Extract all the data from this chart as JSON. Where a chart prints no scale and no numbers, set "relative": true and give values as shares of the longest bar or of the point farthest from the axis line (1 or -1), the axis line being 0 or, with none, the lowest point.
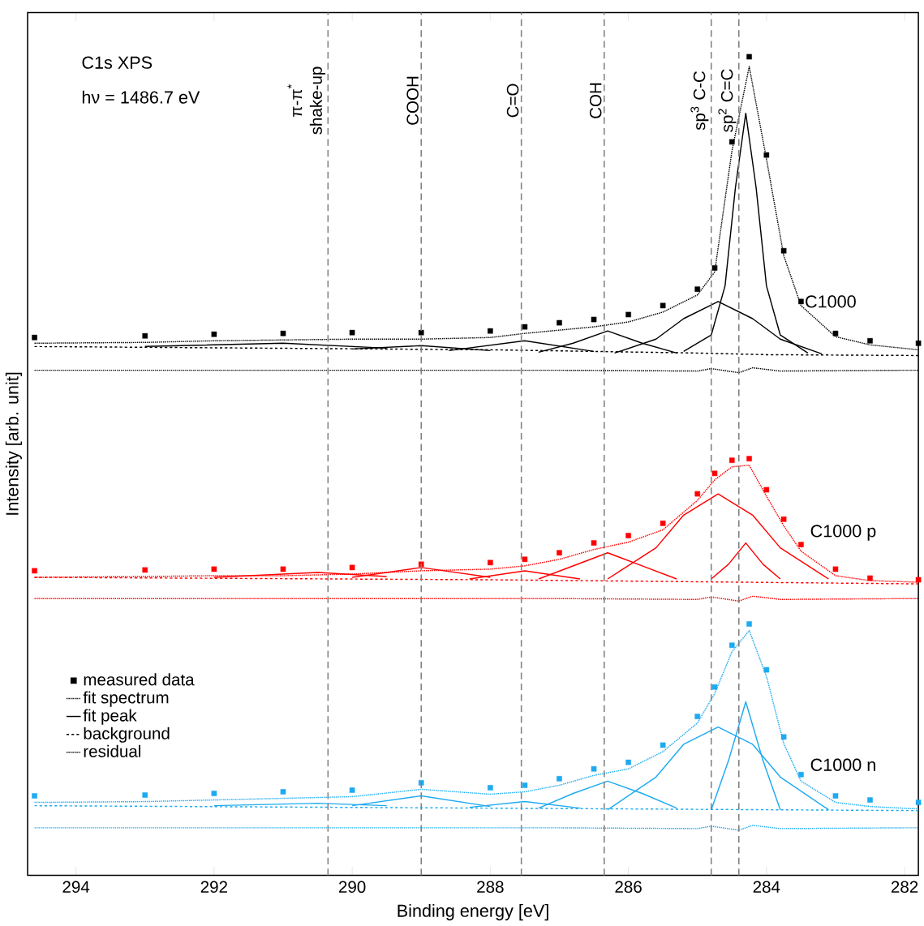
{
  "chart_data": {
    "type": "line",
    "relative": true,
    "xlabel": "Binding energy [eV]",
    "ylabel": "Intensity [arb. unit]",
    "xlim": [
      294.7,
      281.8
    ],
    "xticks": [
      294,
      292,
      290,
      288,
      286,
      284,
      282
    ],
    "legend": "bottom left",
    "x": [
      294.6,
      293,
      292,
      291,
      290,
      289,
      288,
      287.5,
      287,
      286.5,
      286,
      285.5,
      285,
      284.75,
      284.5,
      284.25,
      284,
      283.75,
      283.5,
      283,
      282.5,
      281.8
    ],
    "series": [
      {
        "name": "measured data",
        "type": "scatter",
        "marker": "square",
        "color": "#000000",
        "values": [
          0.657,
          0.659,
          0.661,
          0.662,
          0.663,
          0.663,
          0.665,
          0.67,
          0.675,
          0.679,
          0.685,
          0.696,
          0.716,
          0.742,
          0.896,
          1.0,
          0.88,
          0.763,
          0.701,
          0.662,
          0.653,
          0.65
        ]
      },
      {
        "name": "fit spectrum",
        "line_style": "dotted",
        "color": "#000000",
        "values": [
          0.65,
          0.651,
          0.653,
          0.654,
          0.655,
          0.655,
          0.657,
          0.662,
          0.666,
          0.67,
          0.676,
          0.688,
          0.709,
          0.737,
          0.885,
          0.988,
          0.875,
          0.757,
          0.696,
          0.658,
          0.648,
          0.642
        ]
      },
      {
        "name": "fit peak",
        "line_style": "solid",
        "color": "#000000",
        "x": [
          285.2,
          284.8,
          284.6,
          284.45,
          284.3,
          284.15,
          284.0,
          283.8,
          283.4
        ],
        "values": [
          0.64,
          0.66,
          0.72,
          0.84,
          0.931,
          0.84,
          0.72,
          0.66,
          0.638
        ]
      },
      {
        "name": "background",
        "line_style": "dashed",
        "color": "#000000",
        "x": [
          294.6,
          288,
          285,
          284,
          281.8
        ],
        "values": [
          0.646,
          0.642,
          0.638,
          0.636,
          0.635
        ]
      },
      {
        "name": "residual",
        "line_style": "dotted",
        "color": "#000000",
        "x": [
          294.6,
          290,
          287,
          285,
          284.8,
          284.4,
          284.2,
          283.8,
          282,
          281.8
        ],
        "values": [
          0.617,
          0.617,
          0.617,
          0.616,
          0.619,
          0.614,
          0.62,
          0.616,
          0.617,
          0.617
        ]
      },
      {
        "line_style": "solid",
        "color": "#000000",
        "x": [
          286.2,
          285.6,
          285.2,
          284.7,
          284.2,
          283.8,
          283.2
        ],
        "values": [
          0.638,
          0.655,
          0.68,
          0.701,
          0.68,
          0.655,
          0.637
        ]
      },
      {
        "line_style": "solid",
        "color": "#000000",
        "x": [
          287.3,
          286.8,
          286.3,
          285.8,
          285.3
        ],
        "values": [
          0.639,
          0.65,
          0.665,
          0.65,
          0.638
        ]
      },
      {
        "line_style": "solid",
        "color": "#000000",
        "x": [
          288.6,
          287.5,
          286.5
        ],
        "values": [
          0.641,
          0.653,
          0.64
        ]
      },
      {
        "line_style": "solid",
        "color": "#000000",
        "x": [
          290,
          289,
          288
        ],
        "values": [
          0.643,
          0.647,
          0.641
        ]
      },
      {
        "line_style": "solid",
        "color": "#000000",
        "x": [
          293,
          291,
          289.5
        ],
        "values": [
          0.646,
          0.65,
          0.644
        ]
      },
      {
        "type": "scatter",
        "marker": "square",
        "color": "#ff0000",
        "values": [
          0.372,
          0.373,
          0.374,
          0.374,
          0.376,
          0.38,
          0.382,
          0.386,
          0.394,
          0.406,
          0.415,
          0.43,
          0.466,
          0.491,
          0.507,
          0.509,
          0.471,
          0.435,
          0.404,
          0.374,
          0.363,
          0.361
        ]
      },
      {
        "line_style": "dotted",
        "color": "#ff0000",
        "values": [
          0.364,
          0.365,
          0.366,
          0.366,
          0.368,
          0.372,
          0.374,
          0.378,
          0.386,
          0.398,
          0.407,
          0.422,
          0.458,
          0.483,
          0.499,
          0.501,
          0.463,
          0.427,
          0.396,
          0.366,
          0.36,
          0.358
        ]
      },
      {
        "line_style": "dashed",
        "color": "#ff0000",
        "x": [
          294.6,
          288,
          281.8
        ],
        "values": [
          0.364,
          0.361,
          0.356
        ]
      },
      {
        "line_style": "dotted",
        "color": "#ff0000",
        "x": [
          294.6,
          290,
          287,
          285,
          284.8,
          284.4,
          284.2,
          283.8,
          282,
          281.8
        ],
        "values": [
          0.338,
          0.338,
          0.338,
          0.337,
          0.34,
          0.335,
          0.341,
          0.337,
          0.338,
          0.338
        ]
      },
      {
        "line_style": "solid",
        "color": "#ff0000",
        "x": [
          284.8,
          284.55,
          284.3,
          284.05,
          283.8
        ],
        "values": [
          0.362,
          0.38,
          0.406,
          0.38,
          0.362
        ]
      },
      {
        "line_style": "solid",
        "color": "#ff0000",
        "x": [
          286.3,
          285.6,
          285.2,
          284.7,
          284.2,
          283.8,
          283.1
        ],
        "values": [
          0.362,
          0.4,
          0.44,
          0.466,
          0.44,
          0.4,
          0.362
        ]
      },
      {
        "line_style": "solid",
        "color": "#ff0000",
        "x": [
          287.3,
          286.8,
          286.3,
          285.8,
          285.3
        ],
        "values": [
          0.362,
          0.378,
          0.394,
          0.378,
          0.362
        ]
      },
      {
        "line_style": "solid",
        "color": "#ff0000",
        "x": [
          288.3,
          287.5,
          286.7
        ],
        "values": [
          0.362,
          0.372,
          0.362
        ]
      },
      {
        "line_style": "solid",
        "color": "#ff0000",
        "x": [
          290,
          289,
          288
        ],
        "values": [
          0.364,
          0.376,
          0.364
        ]
      },
      {
        "line_style": "solid",
        "color": "#ff0000",
        "x": [
          292,
          290.5,
          289.5
        ],
        "values": [
          0.364,
          0.37,
          0.365
        ]
      },
      {
        "type": "scatter",
        "marker": "square",
        "color": "#1eaaf0",
        "values": [
          0.097,
          0.098,
          0.1,
          0.102,
          0.104,
          0.113,
          0.107,
          0.11,
          0.118,
          0.13,
          0.138,
          0.159,
          0.194,
          0.23,
          0.281,
          0.307,
          0.251,
          0.169,
          0.123,
          0.097,
          0.092,
          0.089
        ]
      },
      {
        "line_style": "dotted",
        "color": "#1eaaf0",
        "values": [
          0.089,
          0.09,
          0.092,
          0.094,
          0.096,
          0.105,
          0.099,
          0.102,
          0.11,
          0.122,
          0.13,
          0.151,
          0.186,
          0.222,
          0.273,
          0.299,
          0.243,
          0.161,
          0.115,
          0.089,
          0.084,
          0.081
        ]
      },
      {
        "line_style": "dashed",
        "color": "#1eaaf0",
        "x": [
          294.6,
          288,
          281.8
        ],
        "values": [
          0.085,
          0.082,
          0.079
        ]
      },
      {
        "line_style": "dotted",
        "color": "#1eaaf0",
        "x": [
          294.6,
          290,
          287,
          285,
          284.8,
          284.4,
          284.2,
          283.8,
          282,
          281.8
        ],
        "values": [
          0.058,
          0.058,
          0.058,
          0.057,
          0.06,
          0.055,
          0.061,
          0.057,
          0.058,
          0.058
        ]
      },
      {
        "line_style": "solid",
        "color": "#1eaaf0",
        "x": [
          284.8,
          284.55,
          284.3,
          284.05,
          283.8
        ],
        "values": [
          0.08,
          0.14,
          0.212,
          0.14,
          0.08
        ]
      },
      {
        "line_style": "solid",
        "color": "#1eaaf0",
        "x": [
          286.3,
          285.6,
          285.2,
          284.7,
          284.2,
          283.8,
          283.1
        ],
        "values": [
          0.08,
          0.12,
          0.16,
          0.181,
          0.16,
          0.12,
          0.08
        ]
      },
      {
        "line_style": "solid",
        "color": "#1eaaf0",
        "x": [
          287.3,
          286.8,
          286.3,
          285.8,
          285.3
        ],
        "values": [
          0.082,
          0.1,
          0.115,
          0.1,
          0.082
        ]
      },
      {
        "line_style": "solid",
        "color": "#1eaaf0",
        "x": [
          288.3,
          287.5,
          286.7
        ],
        "values": [
          0.083,
          0.09,
          0.082
        ]
      },
      {
        "line_style": "solid",
        "color": "#1eaaf0",
        "x": [
          290,
          289,
          288
        ],
        "values": [
          0.085,
          0.097,
          0.084
        ]
      },
      {
        "line_style": "solid",
        "color": "#1eaaf0",
        "x": [
          292,
          290.5,
          289.5
        ],
        "values": [
          0.085,
          0.088,
          0.085
        ]
      }
    ],
    "ref_lines": [
      {
        "axis": "x",
        "value": 290.35,
        "label": "π-π$^{*}$ shake-up",
        "color": "#808080",
        "line_style": "dashed"
      },
      {
        "axis": "x",
        "value": 289.0,
        "label": "COOH",
        "color": "#808080",
        "line_style": "dashed"
      },
      {
        "axis": "x",
        "value": 287.55,
        "label": "C=O",
        "color": "#808080",
        "line_style": "dashed"
      },
      {
        "axis": "x",
        "value": 286.35,
        "label": "COH",
        "color": "#808080",
        "line_style": "dashed"
      },
      {
        "axis": "x",
        "value": 284.8,
        "label": "sp$^{3}$ C-C",
        "color": "#808080",
        "line_style": "dashed"
      },
      {
        "axis": "x",
        "value": 284.4,
        "label": "sp$^{2}$ C=C",
        "color": "#808080",
        "line_style": "dashed"
      }
    ],
    "annotations": [
      "C1s XPS",
      "hν = 1486.7 eV",
      "C1000",
      "C1000 p",
      "C1000 n"
    ]
  }
}
